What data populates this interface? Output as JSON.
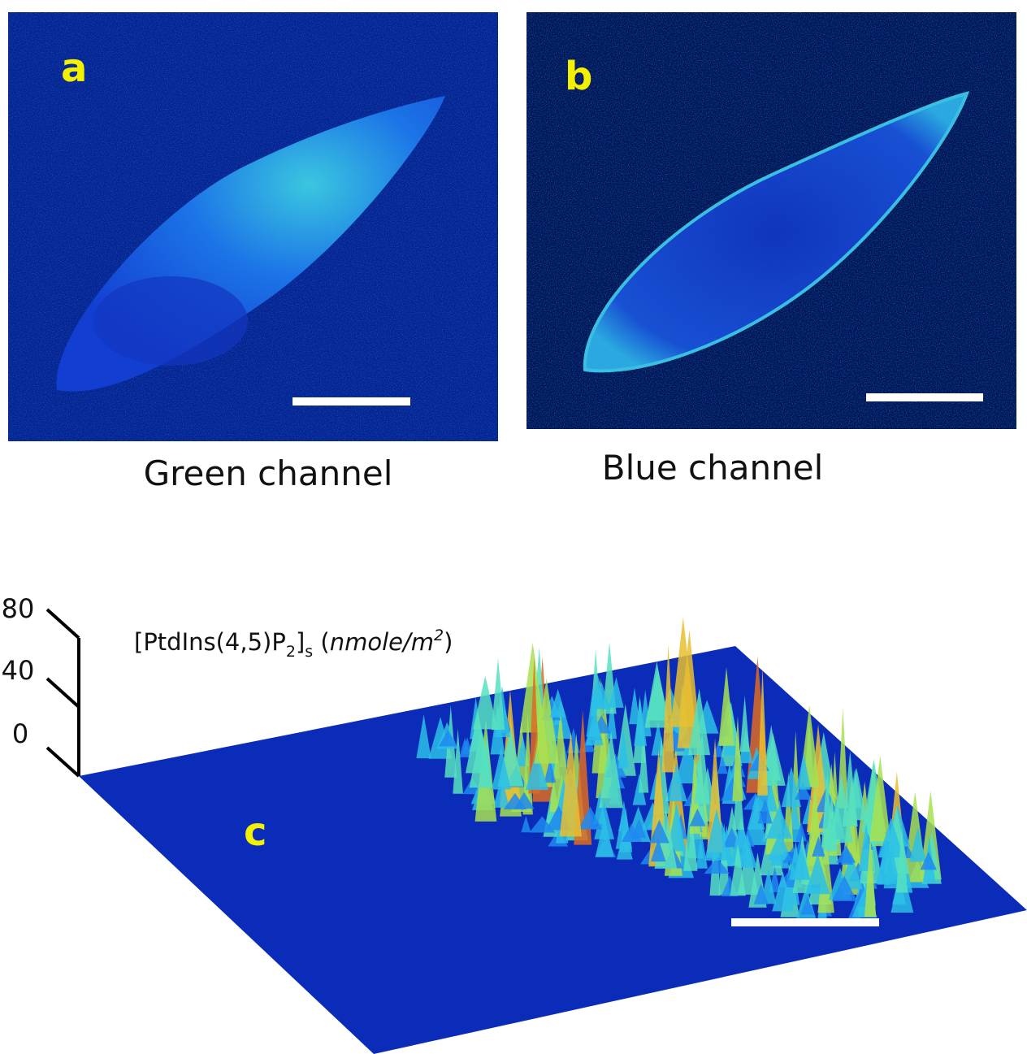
{
  "panels": [
    {
      "label": "a",
      "caption": "Green channel"
    },
    {
      "label": "b",
      "caption": "Blue channel"
    },
    {
      "label": "c",
      "axis_title": {
        "parts": [
          "[PtdIns(4,5)P",
          "2",
          "]",
          "s",
          " (",
          "nmole/m",
          "2",
          ")"
        ]
      },
      "z_ticks": [
        80,
        40,
        0
      ]
    }
  ]
}
